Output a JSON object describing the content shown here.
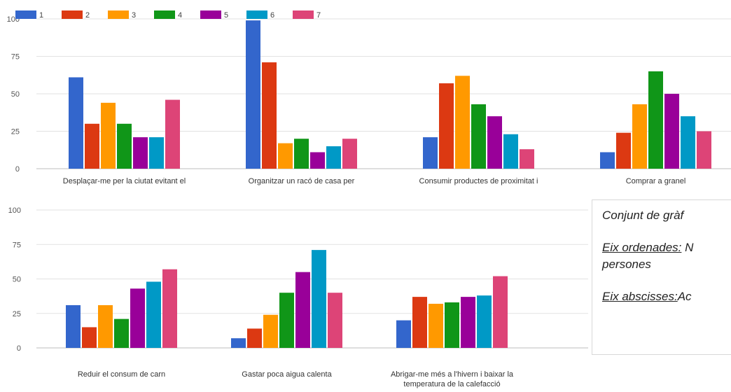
{
  "chart_data": [
    {
      "type": "bar",
      "ylim": [
        0,
        100
      ],
      "yticks": [
        0,
        25,
        50,
        75,
        100
      ],
      "grid": true,
      "legend_position": "top-left",
      "categories": [
        "Desplaçar-me per la ciutat evitant el",
        "Organitzar un racó de casa per",
        "Consumir productes de proximitat i",
        "Comprar a granel"
      ],
      "series": [
        {
          "name": "1",
          "color": "#3366cc",
          "values": [
            61,
            99,
            21,
            11
          ]
        },
        {
          "name": "2",
          "color": "#dc3912",
          "values": [
            30,
            71,
            57,
            24
          ]
        },
        {
          "name": "3",
          "color": "#ff9900",
          "values": [
            44,
            17,
            62,
            43
          ]
        },
        {
          "name": "4",
          "color": "#109618",
          "values": [
            30,
            20,
            43,
            65
          ]
        },
        {
          "name": "5",
          "color": "#990099",
          "values": [
            21,
            11,
            35,
            50
          ]
        },
        {
          "name": "6",
          "color": "#0099c6",
          "values": [
            21,
            15,
            23,
            35
          ]
        },
        {
          "name": "7",
          "color": "#dd4477",
          "values": [
            46,
            20,
            13,
            25
          ]
        }
      ]
    },
    {
      "type": "bar",
      "ylim": [
        0,
        100
      ],
      "yticks": [
        0,
        25,
        50,
        75,
        100
      ],
      "grid": true,
      "categories": [
        "Reduir el consum de carn",
        "Gastar poca aigua calenta",
        "Abrigar-me més a l'hivern i baixar la temperatura de la calefacció"
      ],
      "series": [
        {
          "name": "1",
          "color": "#3366cc",
          "values": [
            31,
            7,
            20
          ]
        },
        {
          "name": "2",
          "color": "#dc3912",
          "values": [
            15,
            14,
            37
          ]
        },
        {
          "name": "3",
          "color": "#ff9900",
          "values": [
            31,
            24,
            32
          ]
        },
        {
          "name": "4",
          "color": "#109618",
          "values": [
            21,
            40,
            33
          ]
        },
        {
          "name": "5",
          "color": "#990099",
          "values": [
            43,
            55,
            37
          ]
        },
        {
          "name": "6",
          "color": "#0099c6",
          "values": [
            48,
            71,
            38
          ]
        },
        {
          "name": "7",
          "color": "#dd4477",
          "values": [
            57,
            40,
            52
          ]
        }
      ]
    }
  ],
  "note": {
    "line1": "Conjunt de gràf",
    "y_label": "Eix ordenades:",
    "y_text": " N",
    "y_text2": "persones",
    "x_label": "Eix abscisses:",
    "x_text": "Ac"
  }
}
